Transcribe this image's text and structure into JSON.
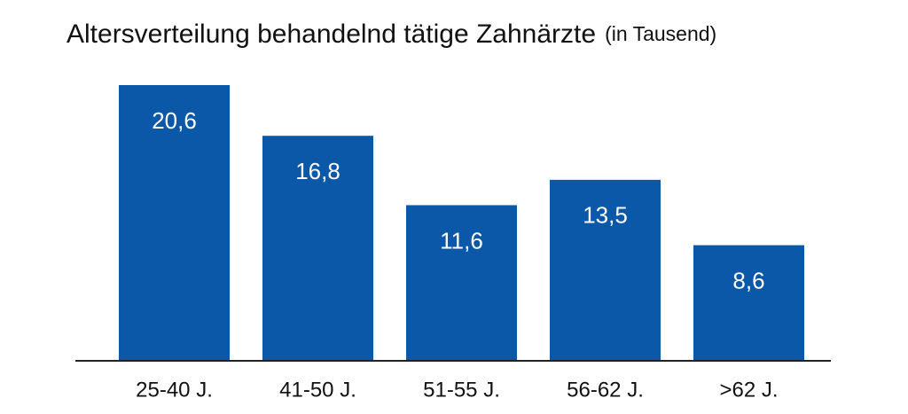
{
  "chart_data": {
    "type": "bar",
    "title": "Altersverteilung behandelnd tätige Zahnärzte",
    "subtitle": "(in Tausend)",
    "categories": [
      "25-40 J.",
      "41-50 J.",
      "51-55 J.",
      "56-62 J.",
      ">62 J."
    ],
    "values": [
      20.6,
      16.8,
      11.6,
      13.5,
      8.6
    ],
    "value_labels": [
      "20,6",
      "16,8",
      "11,6",
      "13,5",
      "8,6"
    ],
    "color": "#0b57a8"
  }
}
